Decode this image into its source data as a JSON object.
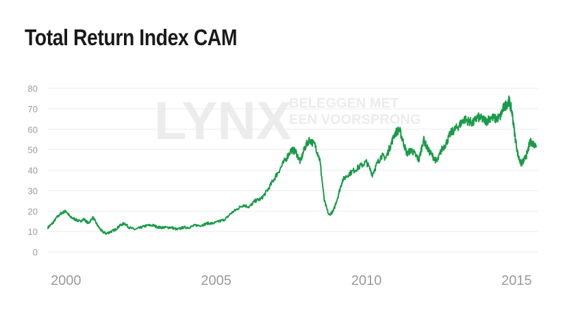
{
  "chart_data": {
    "type": "line",
    "title": "Total Return Index CAM",
    "xlabel": "",
    "ylabel": "",
    "xlim": [
      1999.4,
      2015.7
    ],
    "ylim": [
      0,
      80
    ],
    "yticks": [
      "0",
      "10",
      "20",
      "30",
      "40",
      "50",
      "60",
      "70",
      "80"
    ],
    "xticks": [
      "2000",
      "2005",
      "2010",
      "2015"
    ],
    "grid": "horizontal",
    "legend": "none",
    "line_color": "#1a9b4a",
    "watermark": {
      "logo": "LYNX",
      "tagline_1": "BELEGGEN MET",
      "tagline_2": "EEN VOORSPRONG"
    },
    "series": [
      {
        "x": [
          1999.4,
          1999.55,
          1999.7,
          1999.85,
          2000.0,
          2000.15,
          2000.3,
          2000.45,
          2000.6,
          2000.75,
          2000.9,
          2001.05,
          2001.2,
          2001.35,
          2001.5,
          2001.65,
          2001.8,
          2001.95,
          2002.1,
          2002.3,
          2002.5,
          2002.7,
          2002.9,
          2003.1,
          2003.3,
          2003.5,
          2003.7,
          2003.9,
          2004.1,
          2004.3,
          2004.5,
          2004.7,
          2004.9,
          2005.1,
          2005.3,
          2005.5,
          2005.7,
          2005.9,
          2006.1,
          2006.3,
          2006.5,
          2006.7,
          2006.9,
          2007.1,
          2007.3,
          2007.5,
          2007.65,
          2007.8,
          2007.95,
          2008.1,
          2008.3,
          2008.45,
          2008.6,
          2008.75,
          2008.9,
          2009.05,
          2009.2,
          2009.4,
          2009.6,
          2009.8,
          2010.0,
          2010.2,
          2010.35,
          2010.5,
          2010.65,
          2010.8,
          2010.95,
          2011.1,
          2011.2,
          2011.35,
          2011.5,
          2011.65,
          2011.75,
          2011.9,
          2012.05,
          2012.2,
          2012.35,
          2012.5,
          2012.65,
          2012.8,
          2012.95,
          2013.1,
          2013.25,
          2013.4,
          2013.55,
          2013.7,
          2013.85,
          2014.0,
          2014.15,
          2014.3,
          2014.45,
          2014.55,
          2014.65,
          2014.75,
          2014.85,
          2014.95,
          2015.05,
          2015.15,
          2015.25,
          2015.35,
          2015.45,
          2015.55,
          2015.65
        ],
        "y": [
          12,
          14,
          17,
          19,
          20,
          17,
          16,
          15,
          16,
          14,
          17,
          13,
          10,
          9,
          10,
          11,
          13,
          14,
          12,
          11,
          12,
          13,
          13,
          12,
          12,
          12,
          11,
          12,
          12,
          13,
          13,
          14,
          14,
          15,
          16,
          19,
          21,
          23,
          22,
          25,
          26,
          30,
          35,
          40,
          45,
          50,
          49,
          44,
          51,
          55,
          52,
          45,
          25,
          18,
          20,
          27,
          35,
          38,
          40,
          42,
          44,
          38,
          43,
          47,
          46,
          52,
          58,
          60,
          55,
          48,
          50,
          47,
          45,
          55,
          50,
          47,
          44,
          50,
          53,
          58,
          60,
          62,
          65,
          64,
          63,
          66,
          65,
          64,
          66,
          65,
          66,
          70,
          72,
          74,
          68,
          56,
          47,
          43,
          45,
          48,
          54,
          53,
          52
        ]
      }
    ]
  }
}
